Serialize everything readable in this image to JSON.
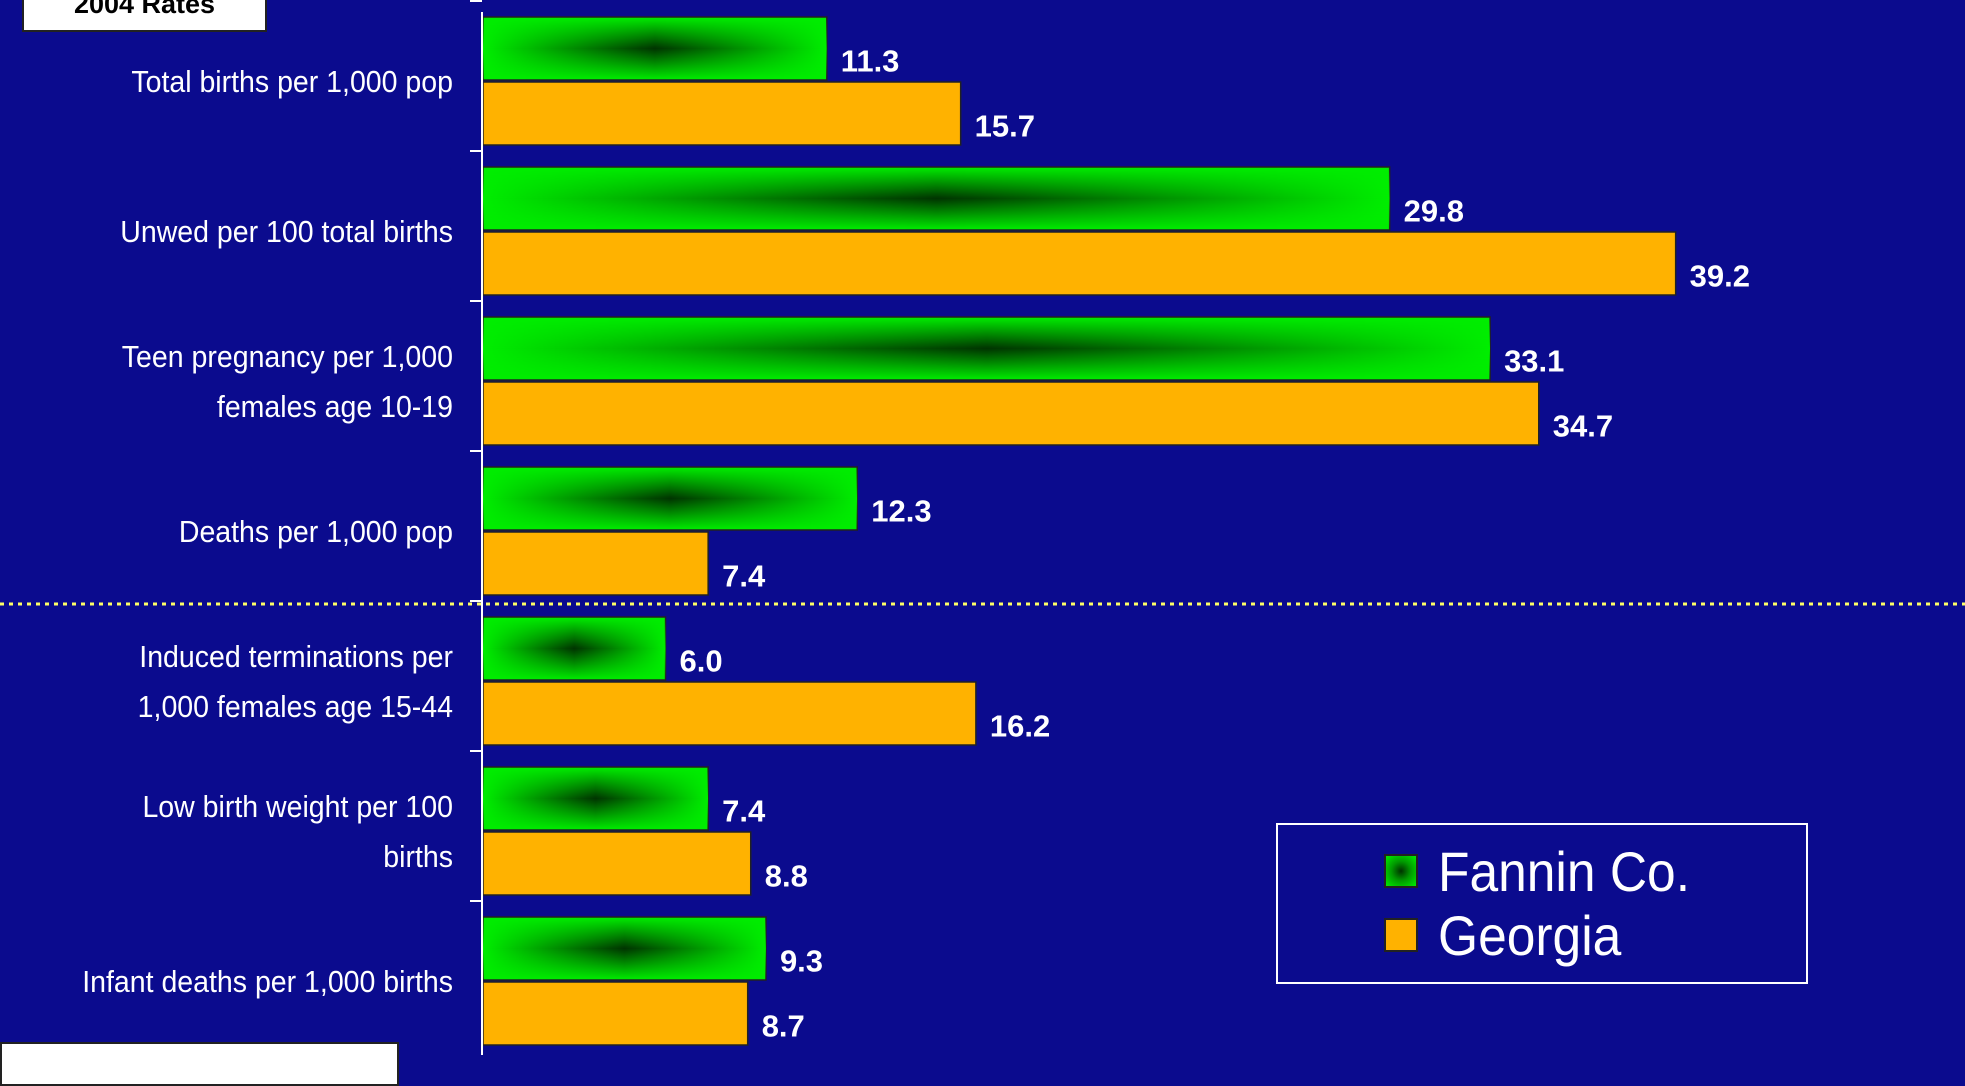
{
  "chart_data": {
    "type": "bar",
    "orientation": "horizontal",
    "title": "2004 Rates",
    "categories": [
      [
        "Total births per 1,000 pop"
      ],
      [
        "Unwed per 100 total births"
      ],
      [
        "Teen pregnancy per 1,000",
        "females age 10-19"
      ],
      [
        "Deaths per 1,000 pop"
      ],
      [
        "Induced terminations per",
        "1,000 females age 15-44"
      ],
      [
        "Low birth weight per 100",
        "births"
      ],
      [
        "Infant deaths per 1,000 births"
      ]
    ],
    "series": [
      {
        "name": "Fannin Co.",
        "values": [
          11.3,
          29.8,
          33.1,
          12.3,
          6.0,
          7.4,
          9.3
        ],
        "labels": [
          "11.3",
          "29.8",
          "33.1",
          "12.3",
          "6.0",
          "7.4",
          "9.3"
        ]
      },
      {
        "name": "Georgia",
        "values": [
          15.7,
          39.2,
          34.7,
          7.4,
          16.2,
          8.8,
          8.7
        ],
        "labels": [
          "15.7",
          "39.2",
          "34.7",
          "7.4",
          "16.2",
          "8.8",
          "8.7"
        ]
      }
    ],
    "xlim": [
      0,
      40
    ],
    "grid": false,
    "legend_position": "bottom-right",
    "colors": {
      "fannin": "#00ee00",
      "fannin_center": "#003300",
      "georgia": "#ffb200",
      "background": "#0b0b8e",
      "separator": "#ffff66"
    }
  }
}
